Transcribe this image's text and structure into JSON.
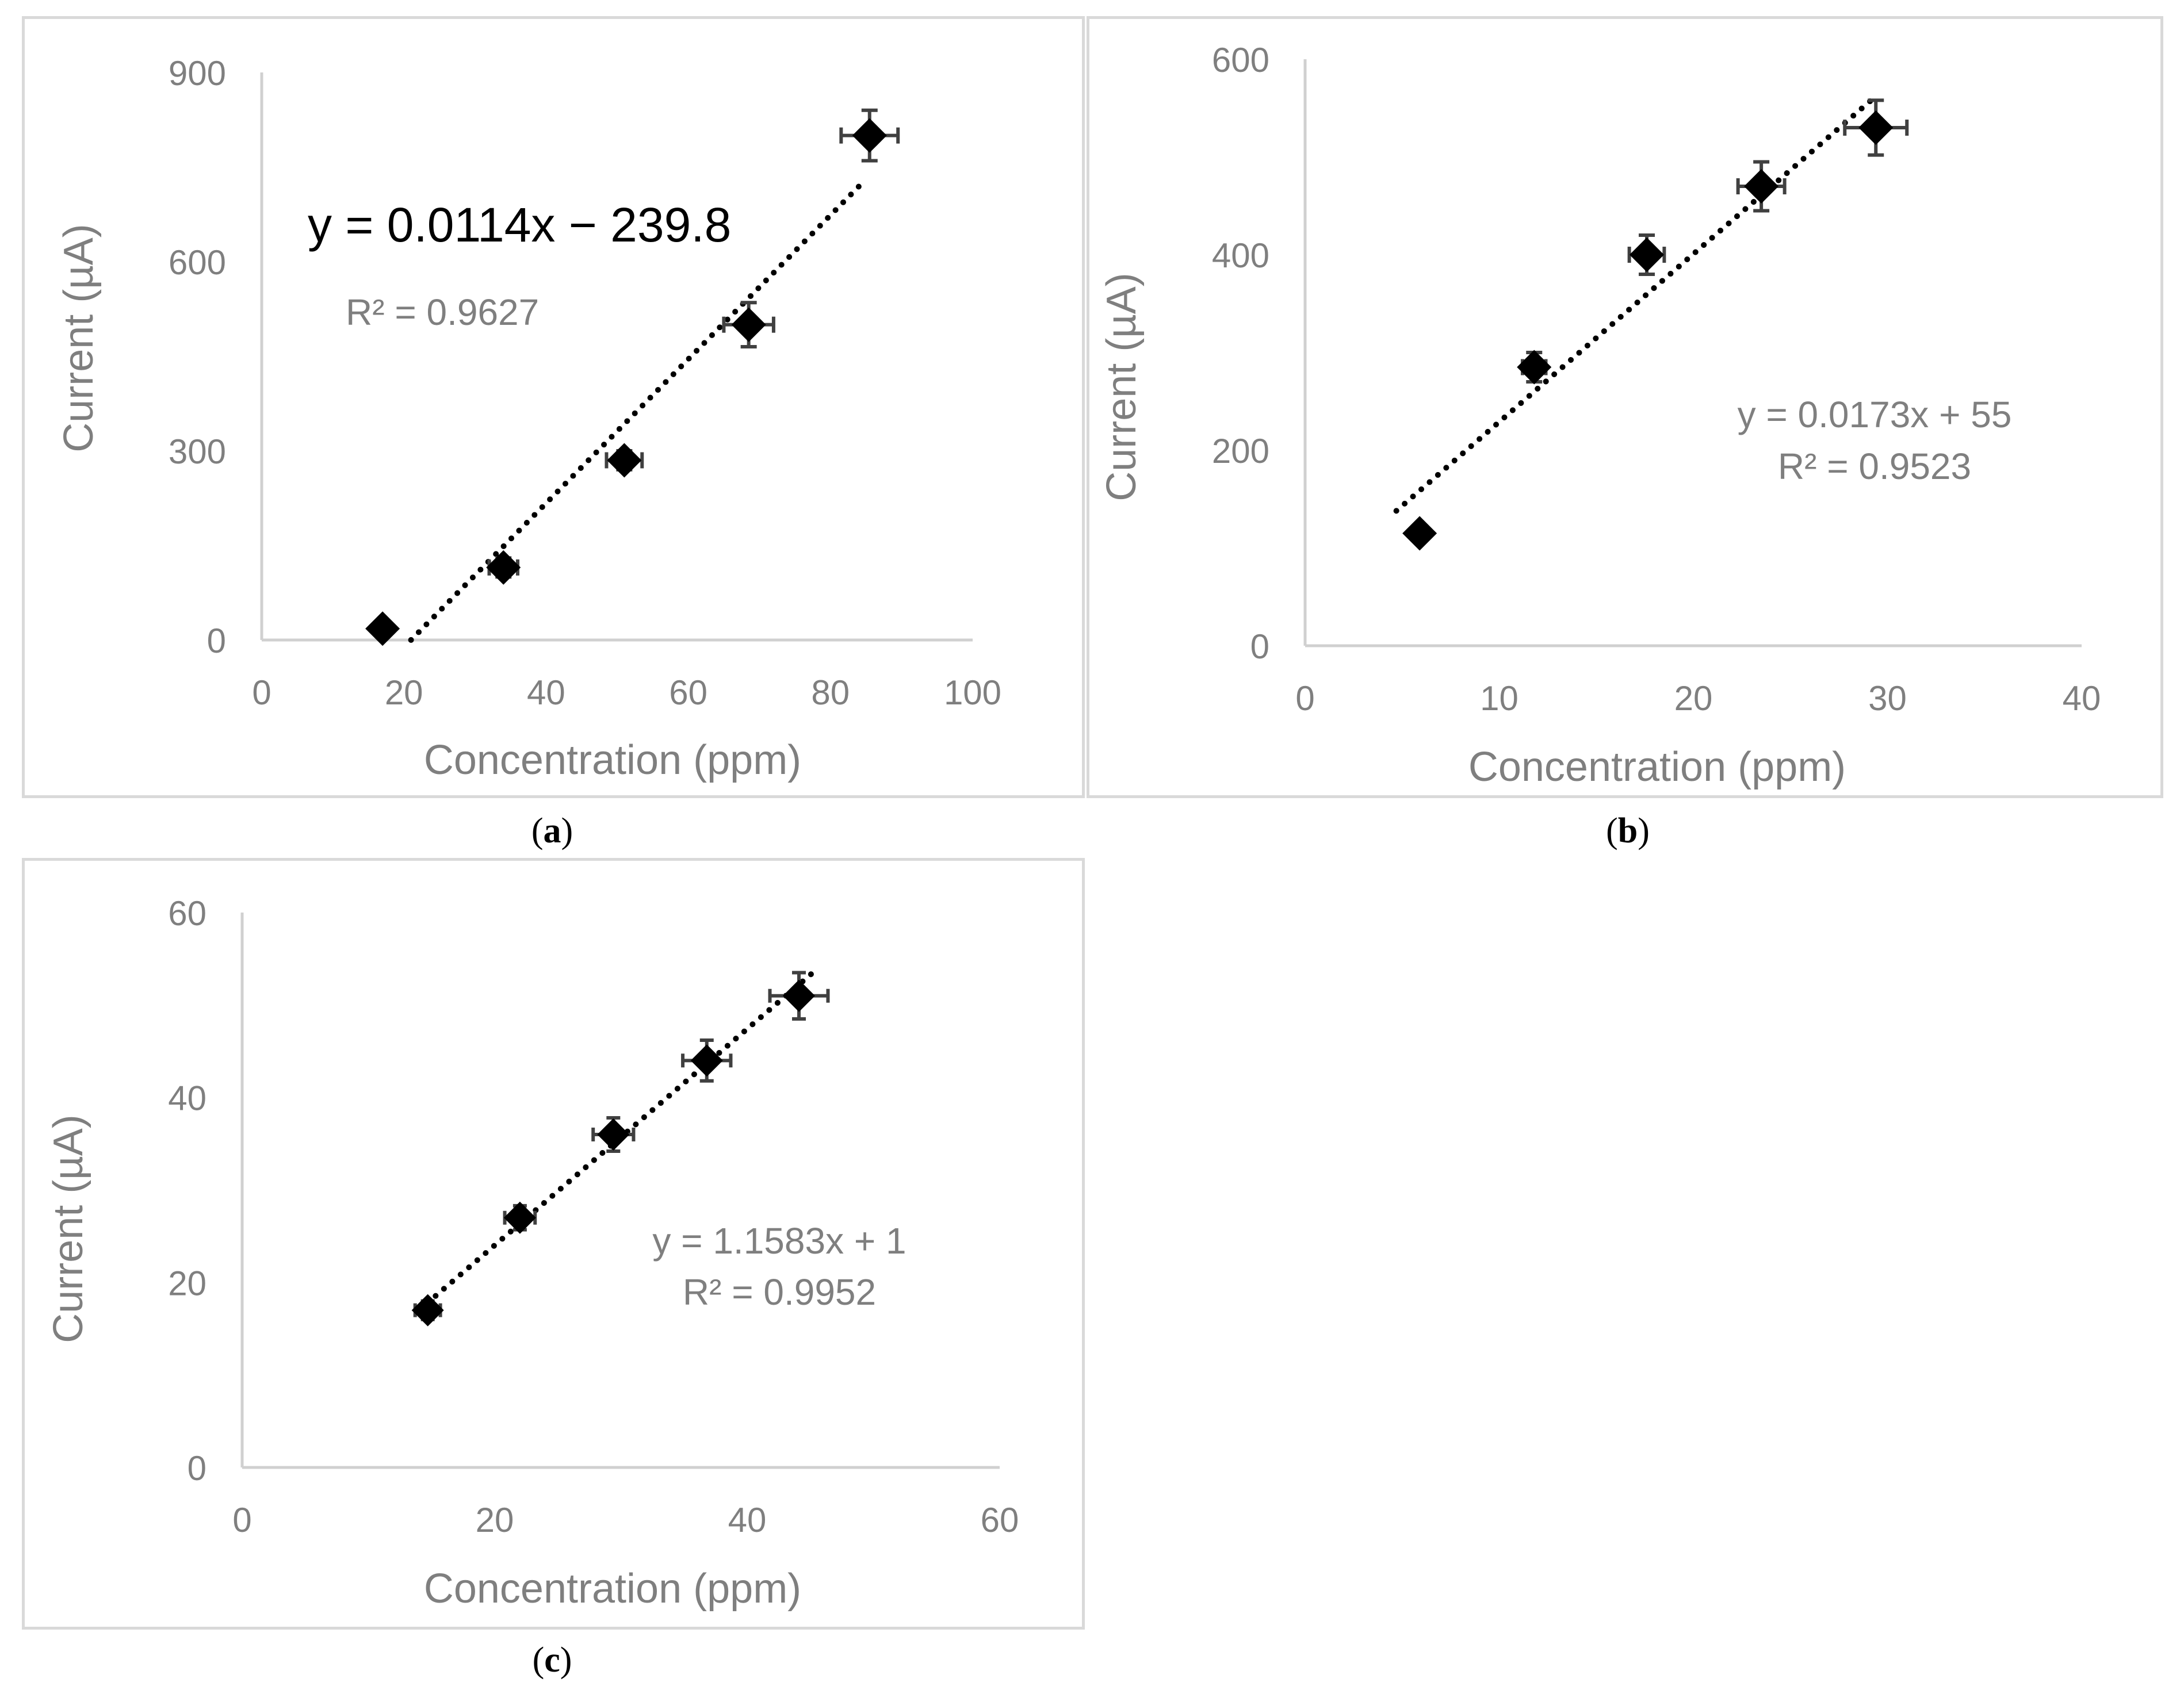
{
  "figure": {
    "panel_labels": [
      "a",
      "b",
      "c"
    ]
  },
  "colors": {
    "axis": "#d0d0d0",
    "text": "#7f7f7f",
    "marker": "#000000",
    "errorbar": "#404040",
    "equation_dark": "#000000"
  },
  "chart_data": [
    {
      "id": "a",
      "type": "scatter",
      "xlabel": "Concentration (ppm)",
      "ylabel": "Current (µA)",
      "xlim": [
        0,
        100
      ],
      "ylim": [
        0,
        900
      ],
      "xticks": [
        0,
        20,
        40,
        60,
        80,
        100
      ],
      "yticks": [
        0,
        300,
        600,
        900
      ],
      "points": [
        {
          "x": 17,
          "y": 18,
          "xerr": 0,
          "yerr": 0
        },
        {
          "x": 34,
          "y": 115,
          "xerr": 2,
          "yerr": 15
        },
        {
          "x": 51,
          "y": 285,
          "xerr": 2.5,
          "yerr": 15
        },
        {
          "x": 68.5,
          "y": 500,
          "xerr": 3.5,
          "yerr": 35
        },
        {
          "x": 85.5,
          "y": 800,
          "xerr": 4,
          "yerr": 40
        }
      ],
      "trendline": {
        "x_start": 21,
        "y_start": 0,
        "x_end": 84.5,
        "y_end": 725
      },
      "equation": "y = 0.0114x − 239.8",
      "r2": "R² = 0.9627"
    },
    {
      "id": "b",
      "type": "scatter",
      "xlabel": "Concentration (ppm)",
      "ylabel": "Current (µA)",
      "xlim": [
        0,
        40
      ],
      "ylim": [
        0,
        600
      ],
      "xticks": [
        0,
        10,
        20,
        30,
        40
      ],
      "yticks": [
        0,
        200,
        400,
        600
      ],
      "points": [
        {
          "x": 5.9,
          "y": 115,
          "xerr": 0,
          "yerr": 0
        },
        {
          "x": 11.8,
          "y": 285,
          "xerr": 0.6,
          "yerr": 15
        },
        {
          "x": 17.6,
          "y": 400,
          "xerr": 0.9,
          "yerr": 20
        },
        {
          "x": 23.5,
          "y": 470,
          "xerr": 1.2,
          "yerr": 25
        },
        {
          "x": 29.4,
          "y": 530,
          "xerr": 1.6,
          "yerr": 28
        }
      ],
      "trendline": {
        "x_start": 4.7,
        "y_start": 138,
        "x_end": 29.1,
        "y_end": 557
      },
      "equation": "y = 0.0173x + 55",
      "r2": "R² = 0.9523"
    },
    {
      "id": "c",
      "type": "scatter",
      "xlabel": "Concentration (ppm)",
      "ylabel": "Current (µA)",
      "xlim": [
        0,
        60
      ],
      "ylim": [
        0,
        60
      ],
      "xticks": [
        0,
        20,
        40,
        60
      ],
      "yticks": [
        0,
        20,
        40,
        60
      ],
      "points": [
        {
          "x": 14.7,
          "y": 17,
          "xerr": 1,
          "yerr": 1
        },
        {
          "x": 22,
          "y": 27,
          "xerr": 1.2,
          "yerr": 1.3
        },
        {
          "x": 29.4,
          "y": 36,
          "xerr": 1.6,
          "yerr": 1.8
        },
        {
          "x": 36.8,
          "y": 44,
          "xerr": 1.9,
          "yerr": 2.2
        },
        {
          "x": 44.1,
          "y": 51,
          "xerr": 2.3,
          "yerr": 2.5
        }
      ],
      "trendline": {
        "x_start": 14,
        "y_start": 17,
        "x_end": 45.2,
        "y_end": 53.5
      },
      "equation": "y = 1.1583x + 1",
      "r2": "R² = 0.9952"
    }
  ]
}
